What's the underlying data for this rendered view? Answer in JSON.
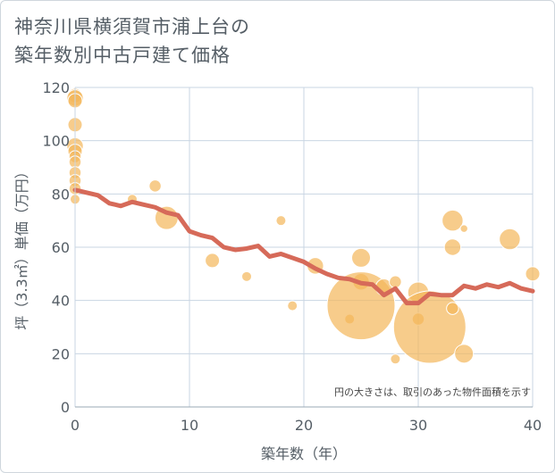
{
  "title_lines": [
    "神奈川県横須賀市浦上台の",
    "築年数別中古戸建て価格"
  ],
  "chart_data": {
    "type": "scatter",
    "xlabel": "築年数（年）",
    "ylabel": "坪（3.3㎡）単価（万円）",
    "xlim": [
      0,
      40
    ],
    "ylim": [
      0,
      120
    ],
    "xticks": [
      0,
      10,
      20,
      30,
      40
    ],
    "yticks": [
      0,
      20,
      40,
      60,
      80,
      100,
      120
    ],
    "grid": true,
    "note": "円の大きさは、取引のあった物件面積を示す",
    "colors": {
      "bubble": "#f3b65a",
      "line": "#d66a59",
      "grid": "#c9d6e3",
      "text": "#555e66"
    },
    "bubbles": [
      {
        "x": 0,
        "y": 117,
        "size": 4
      },
      {
        "x": 0,
        "y": 116,
        "size": 5
      },
      {
        "x": 0,
        "y": 115,
        "size": 4
      },
      {
        "x": 0,
        "y": 106,
        "size": 4
      },
      {
        "x": 0,
        "y": 98,
        "size": 5
      },
      {
        "x": 0,
        "y": 96,
        "size": 4
      },
      {
        "x": 0,
        "y": 94,
        "size": 3
      },
      {
        "x": 0,
        "y": 92,
        "size": 3
      },
      {
        "x": 0,
        "y": 88,
        "size": 3
      },
      {
        "x": 0,
        "y": 85,
        "size": 3
      },
      {
        "x": 0,
        "y": 82,
        "size": 3
      },
      {
        "x": 0,
        "y": 78,
        "size": 2
      },
      {
        "x": 5,
        "y": 78,
        "size": 2
      },
      {
        "x": 7,
        "y": 83,
        "size": 3
      },
      {
        "x": 8,
        "y": 71,
        "size": 8
      },
      {
        "x": 12,
        "y": 55,
        "size": 4
      },
      {
        "x": 15,
        "y": 49,
        "size": 2
      },
      {
        "x": 18,
        "y": 70,
        "size": 2
      },
      {
        "x": 19,
        "y": 38,
        "size": 2
      },
      {
        "x": 21,
        "y": 53,
        "size": 5
      },
      {
        "x": 24,
        "y": 33,
        "size": 2
      },
      {
        "x": 25,
        "y": 56,
        "size": 6
      },
      {
        "x": 25,
        "y": 47,
        "size": 5
      },
      {
        "x": 25,
        "y": 38,
        "size": 28
      },
      {
        "x": 27,
        "y": 45,
        "size": 5
      },
      {
        "x": 28,
        "y": 47,
        "size": 3
      },
      {
        "x": 28,
        "y": 18,
        "size": 2
      },
      {
        "x": 30,
        "y": 43,
        "size": 7
      },
      {
        "x": 30,
        "y": 33,
        "size": 3
      },
      {
        "x": 31,
        "y": 30,
        "size": 30
      },
      {
        "x": 33,
        "y": 70,
        "size": 7
      },
      {
        "x": 33,
        "y": 60,
        "size": 5
      },
      {
        "x": 33,
        "y": 37,
        "size": 3
      },
      {
        "x": 34,
        "y": 67,
        "size": 1
      },
      {
        "x": 34,
        "y": 20,
        "size": 6
      },
      {
        "x": 38,
        "y": 63,
        "size": 7
      },
      {
        "x": 40,
        "y": 50,
        "size": 4
      }
    ],
    "line": {
      "x": [
        0,
        1,
        2,
        3,
        4,
        5,
        6,
        7,
        8,
        9,
        10,
        11,
        12,
        13,
        14,
        15,
        16,
        17,
        18,
        19,
        20,
        21,
        22,
        23,
        24,
        25,
        26,
        27,
        28,
        29,
        30,
        31,
        32,
        33,
        34,
        35,
        36,
        37,
        38,
        39,
        40
      ],
      "y": [
        81.5,
        80.5,
        79.5,
        76.5,
        75.5,
        77,
        76,
        75,
        73,
        72,
        66,
        64.5,
        63.5,
        60,
        59,
        59.5,
        60.5,
        56.5,
        57.5,
        56,
        54.5,
        52,
        50,
        48.5,
        48,
        46.5,
        46,
        42,
        44.5,
        39,
        39,
        42.5,
        42,
        42,
        45.5,
        44.5,
        46,
        45,
        46.5,
        44.5,
        43.5
      ]
    }
  }
}
